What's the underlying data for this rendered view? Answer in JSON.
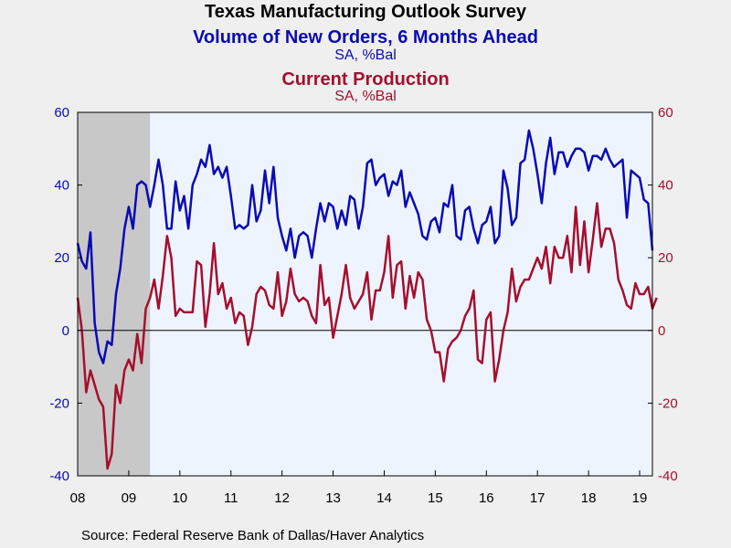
{
  "titles": {
    "main": "Texas Manufacturing Outlook Survey",
    "series1_title": "Volume of New Orders, 6 Months Ahead",
    "series1_units": "SA, %Bal",
    "series2_title": "Current Production",
    "series2_units": "SA, %Bal"
  },
  "source": "Source:  Federal Reserve Bank of Dallas/Haver Analytics",
  "colors": {
    "background": "#efefef",
    "plot_background": "#eef4fe",
    "recession": "#c8c8c8",
    "series1": "#0a0ab4",
    "series2": "#a50f2d"
  },
  "chart_data": {
    "type": "line",
    "x_tick_labels": [
      "08",
      "09",
      "10",
      "11",
      "12",
      "13",
      "14",
      "15",
      "16",
      "17",
      "18",
      "19"
    ],
    "xlim": [
      "2008-01",
      "2019-04"
    ],
    "left_axis": {
      "ylim": [
        -40,
        60
      ],
      "ticks": [
        "-40",
        "-20",
        "0",
        "20",
        "40",
        "60"
      ],
      "color": "#0a0ab4"
    },
    "right_axis": {
      "ylim": [
        -40,
        60
      ],
      "ticks": [
        "-40",
        "-20",
        "0",
        "20",
        "40",
        "60"
      ],
      "color": "#a50f2d"
    },
    "shaded_region": {
      "label": "recession",
      "start": "2008-01",
      "end": "2009-06"
    },
    "zero_line": true,
    "series": [
      {
        "name": "Volume of New Orders, 6 Months Ahead",
        "axis": "left",
        "color": "#0a0ab4",
        "points": [
          [
            "2008-01",
            24
          ],
          [
            "2008-02",
            19
          ],
          [
            "2008-03",
            17
          ],
          [
            "2008-04",
            27
          ],
          [
            "2008-05",
            2
          ],
          [
            "2008-06",
            -6
          ],
          [
            "2008-07",
            -9
          ],
          [
            "2008-08",
            -3
          ],
          [
            "2008-09",
            -4
          ],
          [
            "2008-10",
            10
          ],
          [
            "2008-11",
            17
          ],
          [
            "2008-12",
            28
          ],
          [
            "2009-01",
            34
          ],
          [
            "2009-02",
            28
          ],
          [
            "2009-03",
            40
          ],
          [
            "2009-04",
            41
          ],
          [
            "2009-05",
            40
          ],
          [
            "2009-06",
            34
          ],
          [
            "2009-07",
            40
          ],
          [
            "2009-08",
            47
          ],
          [
            "2009-09",
            40
          ],
          [
            "2009-10",
            28
          ],
          [
            "2009-11",
            28
          ],
          [
            "2009-12",
            41
          ],
          [
            "2010-01",
            33
          ],
          [
            "2010-02",
            37
          ],
          [
            "2010-03",
            28
          ],
          [
            "2010-04",
            40
          ],
          [
            "2010-05",
            43
          ],
          [
            "2010-06",
            47
          ],
          [
            "2010-07",
            45
          ],
          [
            "2010-08",
            51
          ],
          [
            "2010-09",
            43
          ],
          [
            "2010-10",
            45
          ],
          [
            "2010-11",
            42
          ],
          [
            "2010-12",
            45
          ],
          [
            "2011-01",
            37
          ],
          [
            "2011-02",
            28
          ],
          [
            "2011-03",
            29
          ],
          [
            "2011-04",
            28
          ],
          [
            "2011-05",
            29
          ],
          [
            "2011-06",
            40
          ],
          [
            "2011-07",
            30
          ],
          [
            "2011-08",
            33
          ],
          [
            "2011-09",
            44
          ],
          [
            "2011-10",
            35
          ],
          [
            "2011-11",
            45
          ],
          [
            "2011-12",
            31
          ],
          [
            "2012-01",
            26
          ],
          [
            "2012-02",
            22
          ],
          [
            "2012-03",
            28
          ],
          [
            "2012-04",
            20
          ],
          [
            "2012-05",
            26
          ],
          [
            "2012-06",
            27
          ],
          [
            "2012-07",
            26
          ],
          [
            "2012-08",
            20
          ],
          [
            "2012-09",
            28
          ],
          [
            "2012-10",
            35
          ],
          [
            "2012-11",
            30
          ],
          [
            "2012-12",
            35
          ],
          [
            "2013-01",
            34
          ],
          [
            "2013-02",
            28
          ],
          [
            "2013-03",
            33
          ],
          [
            "2013-04",
            29
          ],
          [
            "2013-05",
            37
          ],
          [
            "2013-06",
            36
          ],
          [
            "2013-07",
            28
          ],
          [
            "2013-08",
            34
          ],
          [
            "2013-09",
            46
          ],
          [
            "2013-10",
            47
          ],
          [
            "2013-11",
            40
          ],
          [
            "2013-12",
            42
          ],
          [
            "2014-01",
            43
          ],
          [
            "2014-02",
            37
          ],
          [
            "2014-03",
            41
          ],
          [
            "2014-04",
            40
          ],
          [
            "2014-05",
            44
          ],
          [
            "2014-06",
            34
          ],
          [
            "2014-07",
            38
          ],
          [
            "2014-08",
            35
          ],
          [
            "2014-09",
            32
          ],
          [
            "2014-10",
            26
          ],
          [
            "2014-11",
            25
          ],
          [
            "2014-12",
            30
          ],
          [
            "2015-01",
            31
          ],
          [
            "2015-02",
            27
          ],
          [
            "2015-03",
            35
          ],
          [
            "2015-04",
            34
          ],
          [
            "2015-05",
            40
          ],
          [
            "2015-06",
            26
          ],
          [
            "2015-07",
            25
          ],
          [
            "2015-08",
            33
          ],
          [
            "2015-09",
            34
          ],
          [
            "2015-10",
            28
          ],
          [
            "2015-11",
            24
          ],
          [
            "2015-12",
            29
          ],
          [
            "2016-01",
            30
          ],
          [
            "2016-02",
            34
          ],
          [
            "2016-03",
            24
          ],
          [
            "2016-04",
            26
          ],
          [
            "2016-05",
            44
          ],
          [
            "2016-06",
            39
          ],
          [
            "2016-07",
            29
          ],
          [
            "2016-08",
            31
          ],
          [
            "2016-09",
            46
          ],
          [
            "2016-10",
            47
          ],
          [
            "2016-11",
            55
          ],
          [
            "2016-12",
            50
          ],
          [
            "2017-01",
            43
          ],
          [
            "2017-02",
            35
          ],
          [
            "2017-03",
            46
          ],
          [
            "2017-04",
            53
          ],
          [
            "2017-05",
            43
          ],
          [
            "2017-06",
            49
          ],
          [
            "2017-07",
            49
          ],
          [
            "2017-08",
            45
          ],
          [
            "2017-09",
            48
          ],
          [
            "2017-10",
            50
          ],
          [
            "2017-11",
            50
          ],
          [
            "2017-12",
            49
          ],
          [
            "2018-01",
            44
          ],
          [
            "2018-02",
            48
          ],
          [
            "2018-03",
            48
          ],
          [
            "2018-04",
            47
          ],
          [
            "2018-05",
            50
          ],
          [
            "2018-06",
            47
          ],
          [
            "2018-07",
            45
          ],
          [
            "2018-08",
            46
          ],
          [
            "2018-09",
            47
          ],
          [
            "2018-10",
            31
          ],
          [
            "2018-11",
            44
          ],
          [
            "2018-12",
            43
          ],
          [
            "2019-01",
            42
          ],
          [
            "2019-02",
            36
          ],
          [
            "2019-03",
            35
          ],
          [
            "2019-04",
            22
          ]
        ]
      },
      {
        "name": "Current Production",
        "axis": "right",
        "color": "#a50f2d",
        "points": [
          [
            "2008-01",
            9
          ],
          [
            "2008-02",
            0
          ],
          [
            "2008-03",
            -17
          ],
          [
            "2008-04",
            -11
          ],
          [
            "2008-05",
            -15
          ],
          [
            "2008-06",
            -19
          ],
          [
            "2008-07",
            -21
          ],
          [
            "2008-08",
            -38
          ],
          [
            "2008-09",
            -34
          ],
          [
            "2008-10",
            -15
          ],
          [
            "2008-11",
            -20
          ],
          [
            "2008-12",
            -11
          ],
          [
            "2009-01",
            -8
          ],
          [
            "2009-02",
            -11
          ],
          [
            "2009-03",
            -1
          ],
          [
            "2009-04",
            -9
          ],
          [
            "2009-05",
            6
          ],
          [
            "2009-06",
            9
          ],
          [
            "2009-07",
            14
          ],
          [
            "2009-08",
            6
          ],
          [
            "2009-09",
            15
          ],
          [
            "2009-10",
            26
          ],
          [
            "2009-11",
            20
          ],
          [
            "2009-12",
            4
          ],
          [
            "2010-01",
            6
          ],
          [
            "2010-02",
            5
          ],
          [
            "2010-03",
            5
          ],
          [
            "2010-04",
            5
          ],
          [
            "2010-05",
            19
          ],
          [
            "2010-06",
            18
          ],
          [
            "2010-07",
            1
          ],
          [
            "2010-08",
            10
          ],
          [
            "2010-09",
            24
          ],
          [
            "2010-10",
            10
          ],
          [
            "2010-11",
            13
          ],
          [
            "2010-12",
            6
          ],
          [
            "2011-01",
            9
          ],
          [
            "2011-02",
            2
          ],
          [
            "2011-03",
            5
          ],
          [
            "2011-04",
            4
          ],
          [
            "2011-05",
            -4
          ],
          [
            "2011-06",
            1
          ],
          [
            "2011-07",
            10
          ],
          [
            "2011-08",
            12
          ],
          [
            "2011-09",
            11
          ],
          [
            "2011-10",
            7
          ],
          [
            "2011-11",
            6
          ],
          [
            "2011-12",
            16
          ],
          [
            "2012-01",
            4
          ],
          [
            "2012-02",
            8
          ],
          [
            "2012-03",
            17
          ],
          [
            "2012-04",
            10
          ],
          [
            "2012-05",
            8
          ],
          [
            "2012-06",
            9
          ],
          [
            "2012-07",
            8
          ],
          [
            "2012-08",
            4
          ],
          [
            "2012-09",
            2
          ],
          [
            "2012-10",
            18
          ],
          [
            "2012-11",
            7
          ],
          [
            "2012-12",
            9
          ],
          [
            "2013-01",
            -2
          ],
          [
            "2013-02",
            4
          ],
          [
            "2013-03",
            10
          ],
          [
            "2013-04",
            18
          ],
          [
            "2013-05",
            9
          ],
          [
            "2013-06",
            6
          ],
          [
            "2013-07",
            8
          ],
          [
            "2013-08",
            10
          ],
          [
            "2013-09",
            16
          ],
          [
            "2013-10",
            3
          ],
          [
            "2013-11",
            11
          ],
          [
            "2013-12",
            11
          ],
          [
            "2014-01",
            16
          ],
          [
            "2014-02",
            26
          ],
          [
            "2014-03",
            9
          ],
          [
            "2014-04",
            18
          ],
          [
            "2014-05",
            19
          ],
          [
            "2014-06",
            6
          ],
          [
            "2014-07",
            15
          ],
          [
            "2014-08",
            9
          ],
          [
            "2014-09",
            16
          ],
          [
            "2014-10",
            14
          ],
          [
            "2014-11",
            3
          ],
          [
            "2014-12",
            0
          ],
          [
            "2015-01",
            -6
          ],
          [
            "2015-02",
            -6
          ],
          [
            "2015-03",
            -14
          ],
          [
            "2015-04",
            -5
          ],
          [
            "2015-05",
            -3
          ],
          [
            "2015-06",
            -2
          ],
          [
            "2015-07",
            0
          ],
          [
            "2015-08",
            4
          ],
          [
            "2015-09",
            6
          ],
          [
            "2015-10",
            11
          ],
          [
            "2015-11",
            -8
          ],
          [
            "2015-12",
            -9
          ],
          [
            "2016-01",
            3
          ],
          [
            "2016-02",
            5
          ],
          [
            "2016-03",
            -14
          ],
          [
            "2016-04",
            -8
          ],
          [
            "2016-05",
            0
          ],
          [
            "2016-06",
            5
          ],
          [
            "2016-07",
            17
          ],
          [
            "2016-08",
            8
          ],
          [
            "2016-09",
            12
          ],
          [
            "2016-10",
            14
          ],
          [
            "2016-11",
            14
          ],
          [
            "2016-12",
            17
          ],
          [
            "2017-01",
            20
          ],
          [
            "2017-02",
            17
          ],
          [
            "2017-03",
            23
          ],
          [
            "2017-04",
            13
          ],
          [
            "2017-05",
            23
          ],
          [
            "2017-06",
            20
          ],
          [
            "2017-07",
            20
          ],
          [
            "2017-08",
            26
          ],
          [
            "2017-09",
            16
          ],
          [
            "2017-10",
            34
          ],
          [
            "2017-11",
            18
          ],
          [
            "2017-12",
            30
          ],
          [
            "2018-01",
            16
          ],
          [
            "2018-02",
            25
          ],
          [
            "2018-03",
            35
          ],
          [
            "2018-04",
            23
          ],
          [
            "2018-05",
            28
          ],
          [
            "2018-06",
            28
          ],
          [
            "2018-07",
            24
          ],
          [
            "2018-08",
            14
          ],
          [
            "2018-09",
            11
          ],
          [
            "2018-10",
            7
          ],
          [
            "2018-11",
            6
          ],
          [
            "2018-12",
            13
          ],
          [
            "2019-01",
            10
          ],
          [
            "2019-02",
            10
          ],
          [
            "2019-03",
            12
          ],
          [
            "2019-04",
            6
          ],
          [
            "2019-05",
            9
          ]
        ]
      }
    ]
  }
}
